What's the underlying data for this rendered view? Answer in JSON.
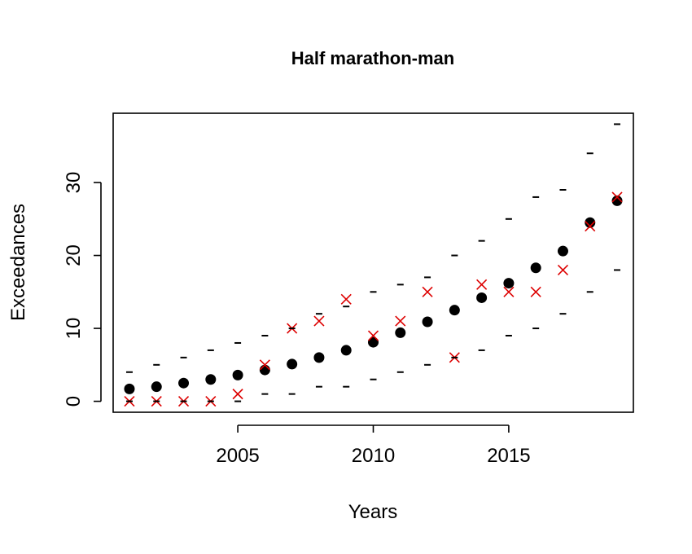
{
  "chart_data": {
    "type": "scatter",
    "title": "Half marathon-man",
    "xlabel": "Years",
    "ylabel": "Exceedances",
    "xlim": [
      2000.4,
      2019.6
    ],
    "ylim": [
      -1.5,
      39.5
    ],
    "x_ticks": [
      2005,
      2010,
      2015
    ],
    "y_ticks": [
      0,
      10,
      20,
      30
    ],
    "grid": false,
    "legend": "none",
    "series": [
      {
        "marker": "filled-circle",
        "color": "#000000",
        "x": [
          2001,
          2002,
          2003,
          2004,
          2005,
          2006,
          2007,
          2008,
          2009,
          2010,
          2011,
          2012,
          2013,
          2014,
          2015,
          2016,
          2017,
          2018,
          2019
        ],
        "y": [
          1.7,
          2.0,
          2.5,
          3.0,
          3.6,
          4.3,
          5.1,
          6.0,
          7.0,
          8.1,
          9.4,
          10.9,
          12.5,
          14.2,
          16.2,
          18.3,
          20.6,
          24.5,
          27.5
        ]
      },
      {
        "marker": "x-cross",
        "color": "#dd0000",
        "x": [
          2001,
          2002,
          2003,
          2004,
          2005,
          2006,
          2007,
          2008,
          2009,
          2010,
          2011,
          2012,
          2013,
          2014,
          2015,
          2016,
          2017,
          2018,
          2019
        ],
        "y": [
          0,
          0,
          0,
          0,
          1,
          5,
          10,
          11,
          14,
          9,
          11,
          15,
          6,
          16,
          15,
          15,
          18,
          24,
          28
        ]
      },
      {
        "marker": "dash",
        "color": "#000000",
        "x": [
          2001,
          2002,
          2003,
          2004,
          2005,
          2006,
          2007,
          2008,
          2009,
          2010,
          2011,
          2012,
          2013,
          2014,
          2015,
          2016,
          2017,
          2018,
          2019
        ],
        "y": [
          4,
          5,
          6,
          7,
          8,
          9,
          10,
          12,
          13,
          15,
          16,
          17,
          20,
          22,
          25,
          28,
          29,
          34,
          38
        ]
      },
      {
        "marker": "dash",
        "color": "#000000",
        "x": [
          2001,
          2002,
          2003,
          2004,
          2005,
          2006,
          2007,
          2008,
          2009,
          2010,
          2011,
          2012,
          2013,
          2014,
          2015,
          2016,
          2017,
          2018,
          2019
        ],
        "y": [
          0,
          0,
          0,
          0,
          0,
          1,
          1,
          2,
          2,
          3,
          4,
          5,
          6,
          7,
          9,
          10,
          12,
          15,
          18
        ]
      }
    ]
  }
}
